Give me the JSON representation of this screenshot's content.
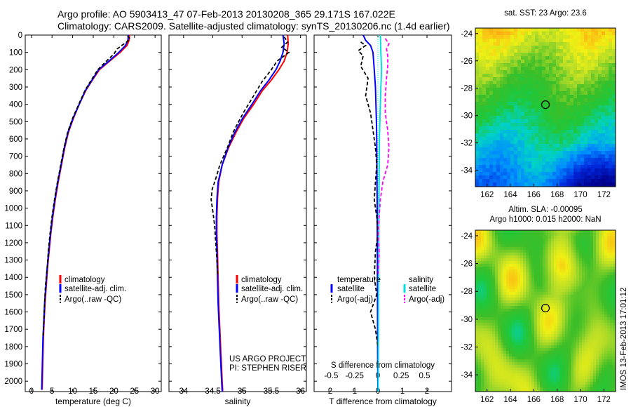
{
  "title_line1": "Argo profile: AO 5903413_47 07-Feb-2013 20130208_365 29.171S 167.022E",
  "title_line2": "Climatology: CARS2009. Satellite-adjusted climatology: synTS_20130206.nc (1.4d earlier)",
  "side_label": "IMOS 13-Feb-2013 17:01:12",
  "chart_data": [
    {
      "type": "line",
      "id": "temperature-profile",
      "xlabel": "temperature (deg C)",
      "xlim": [
        -1.5,
        31.5
      ],
      "xticks": [
        0,
        5,
        10,
        15,
        20,
        25,
        30
      ],
      "ylim": [
        0,
        2060
      ],
      "yticks": [
        0,
        100,
        200,
        300,
        400,
        500,
        600,
        700,
        800,
        900,
        1000,
        1100,
        1200,
        1300,
        1400,
        1500,
        1600,
        1700,
        1800,
        1900,
        2000
      ],
      "yreversed": true,
      "legend": [
        "climatology",
        "satellite-adj. clim.",
        "Argo(..raw -QC)"
      ],
      "series": [
        {
          "name": "climatology",
          "color": "#ff0000",
          "style": "solid",
          "points": [
            [
              23.8,
              0
            ],
            [
              23.7,
              30
            ],
            [
              23.2,
              60
            ],
            [
              21.5,
              100
            ],
            [
              19,
              150
            ],
            [
              16.5,
              200
            ],
            [
              14.8,
              260
            ],
            [
              13.2,
              320
            ],
            [
              11.6,
              400
            ],
            [
              10.2,
              480
            ],
            [
              9,
              560
            ],
            [
              8.1,
              650
            ],
            [
              7.3,
              750
            ],
            [
              6.5,
              850
            ],
            [
              5.8,
              950
            ],
            [
              5.2,
              1050
            ],
            [
              4.7,
              1150
            ],
            [
              4.3,
              1250
            ],
            [
              3.9,
              1350
            ],
            [
              3.6,
              1450
            ],
            [
              3.3,
              1550
            ],
            [
              3.1,
              1650
            ],
            [
              2.9,
              1750
            ],
            [
              2.8,
              1850
            ],
            [
              2.7,
              1950
            ],
            [
              2.6,
              2050
            ]
          ]
        },
        {
          "name": "satellite-adj. clim.",
          "color": "#0000ff",
          "style": "solid",
          "points": [
            [
              23.5,
              0
            ],
            [
              23.4,
              30
            ],
            [
              22.8,
              60
            ],
            [
              21.2,
              100
            ],
            [
              18.8,
              150
            ],
            [
              16.3,
              200
            ],
            [
              14.7,
              260
            ],
            [
              13.1,
              320
            ],
            [
              11.6,
              400
            ],
            [
              10.1,
              480
            ],
            [
              8.9,
              560
            ],
            [
              8,
              650
            ],
            [
              7.2,
              750
            ],
            [
              6.4,
              850
            ],
            [
              5.7,
              950
            ],
            [
              5.1,
              1050
            ],
            [
              4.6,
              1150
            ],
            [
              4.2,
              1250
            ],
            [
              3.8,
              1350
            ],
            [
              3.5,
              1450
            ],
            [
              3.2,
              1550
            ],
            [
              3,
              1650
            ],
            [
              2.8,
              1750
            ],
            [
              2.7,
              1850
            ],
            [
              2.6,
              1950
            ],
            [
              2.5,
              2050
            ]
          ]
        },
        {
          "name": "Argo(..raw -QC)",
          "color": "#000000",
          "style": "dashed",
          "points": [
            [
              23.3,
              5
            ],
            [
              23.9,
              20
            ],
            [
              23.1,
              40
            ],
            [
              22.2,
              55
            ],
            [
              20.8,
              80
            ],
            [
              20,
              110
            ],
            [
              18.2,
              150
            ],
            [
              16.1,
              200
            ],
            [
              14.5,
              260
            ],
            [
              13,
              320
            ],
            [
              11.5,
              400
            ],
            [
              10,
              480
            ],
            [
              8.8,
              560
            ],
            [
              7.9,
              650
            ],
            [
              7.1,
              750
            ],
            [
              6.3,
              850
            ],
            [
              5.6,
              950
            ],
            [
              5,
              1050
            ],
            [
              4.5,
              1150
            ],
            [
              4.1,
              1250
            ],
            [
              3.8,
              1350
            ],
            [
              3.4,
              1450
            ],
            [
              3.2,
              1550
            ],
            [
              3,
              1650
            ],
            [
              2.8,
              1750
            ]
          ]
        }
      ]
    },
    {
      "type": "line",
      "id": "salinity-profile",
      "xlabel": "salinity",
      "xlim": [
        33.75,
        36.1
      ],
      "xticks": [
        34,
        34.5,
        35,
        35.5,
        36
      ],
      "ylim": [
        0,
        2060
      ],
      "yreversed": true,
      "legend": [
        "climatology",
        "satellite-adj. clim.",
        "Argo(..raw -QC)"
      ],
      "annotation": [
        "US ARGO PROJECT",
        "PI: STEPHEN RISER"
      ],
      "series": [
        {
          "name": "climatology",
          "color": "#ff0000",
          "style": "solid",
          "points": [
            [
              35.78,
              0
            ],
            [
              35.79,
              50
            ],
            [
              35.77,
              100
            ],
            [
              35.72,
              150
            ],
            [
              35.63,
              200
            ],
            [
              35.5,
              260
            ],
            [
              35.35,
              320
            ],
            [
              35.2,
              400
            ],
            [
              35.03,
              480
            ],
            [
              34.9,
              560
            ],
            [
              34.77,
              650
            ],
            [
              34.66,
              750
            ],
            [
              34.6,
              850
            ],
            [
              34.58,
              950
            ],
            [
              34.57,
              1050
            ],
            [
              34.57,
              1150
            ],
            [
              34.58,
              1250
            ],
            [
              34.59,
              1400
            ],
            [
              34.6,
              1550
            ],
            [
              34.62,
              1700
            ],
            [
              34.64,
              1850
            ],
            [
              34.66,
              2000
            ],
            [
              34.67,
              2060
            ]
          ]
        },
        {
          "name": "satellite-adj. clim.",
          "color": "#0000ff",
          "style": "solid",
          "points": [
            [
              35.7,
              0
            ],
            [
              35.72,
              50
            ],
            [
              35.7,
              100
            ],
            [
              35.65,
              150
            ],
            [
              35.58,
              200
            ],
            [
              35.46,
              260
            ],
            [
              35.32,
              320
            ],
            [
              35.17,
              400
            ],
            [
              35.01,
              480
            ],
            [
              34.88,
              560
            ],
            [
              34.76,
              650
            ],
            [
              34.66,
              750
            ],
            [
              34.59,
              850
            ],
            [
              34.57,
              950
            ],
            [
              34.56,
              1050
            ],
            [
              34.56,
              1150
            ],
            [
              34.57,
              1250
            ],
            [
              34.58,
              1400
            ],
            [
              34.59,
              1550
            ],
            [
              34.61,
              1700
            ],
            [
              34.63,
              1850
            ],
            [
              34.65,
              2000
            ],
            [
              34.66,
              2060
            ]
          ]
        },
        {
          "name": "Argo(..raw -QC)",
          "color": "#000000",
          "style": "dashed",
          "points": [
            [
              35.72,
              10
            ],
            [
              35.78,
              40
            ],
            [
              35.68,
              70
            ],
            [
              35.8,
              100
            ],
            [
              35.6,
              150
            ],
            [
              35.5,
              200
            ],
            [
              35.34,
              270
            ],
            [
              35.2,
              350
            ],
            [
              35.02,
              450
            ],
            [
              34.85,
              560
            ],
            [
              34.75,
              650
            ],
            [
              34.62,
              750
            ],
            [
              34.55,
              830
            ],
            [
              34.49,
              890
            ],
            [
              34.47,
              950
            ],
            [
              34.5,
              1020
            ],
            [
              34.53,
              1100
            ],
            [
              34.55,
              1200
            ],
            [
              34.57,
              1300
            ],
            [
              34.58,
              1380
            ]
          ]
        }
      ]
    },
    {
      "type": "line",
      "id": "difference-profile",
      "xlabel": "T difference from climatology",
      "xlabel_top": "S difference from climatology",
      "xlim": [
        -2.6,
        3.0
      ],
      "xticks": [
        -2,
        -1,
        0,
        1,
        2
      ],
      "xticks_s": [
        "-0.5",
        "-0.25",
        "0",
        "0.25",
        "0.5"
      ],
      "xticks_s_pos": [
        -1.9,
        -0.95,
        0,
        0.95,
        1.9
      ],
      "ylim": [
        0,
        2060
      ],
      "yreversed": true,
      "legend_temperature": {
        "title": "temperature",
        "items": [
          "satellite",
          "Argo(-adj)"
        ]
      },
      "legend_salinity": {
        "title": "salinity",
        "items": [
          "satellite",
          "Argo(-adj)"
        ]
      },
      "series": [
        {
          "name": "temperature satellite",
          "color": "#0000ff",
          "style": "solid",
          "points": [
            [
              -0.6,
              0
            ],
            [
              -0.5,
              30
            ],
            [
              -0.3,
              60
            ],
            [
              -0.2,
              100
            ],
            [
              -0.15,
              200
            ],
            [
              -0.1,
              300
            ],
            [
              -0.08,
              400
            ],
            [
              -0.06,
              500
            ],
            [
              -0.05,
              600
            ],
            [
              -0.04,
              800
            ],
            [
              -0.03,
              1000
            ],
            [
              -0.02,
              1400
            ],
            [
              -0.01,
              1800
            ],
            [
              0,
              2060
            ]
          ]
        },
        {
          "name": "temperature Argo(-adj)",
          "color": "#000000",
          "style": "dashed",
          "points": [
            [
              -0.7,
              40
            ],
            [
              -0.5,
              60
            ],
            [
              -0.8,
              90
            ],
            [
              -0.6,
              120
            ],
            [
              -0.7,
              180
            ],
            [
              -0.4,
              250
            ],
            [
              -0.5,
              350
            ],
            [
              -0.3,
              450
            ],
            [
              -0.2,
              550
            ],
            [
              -0.1,
              650
            ],
            [
              -0.05,
              750
            ],
            [
              -0.1,
              850
            ],
            [
              -0.15,
              950
            ],
            [
              -0.05,
              1050
            ],
            [
              0,
              1150
            ],
            [
              -0.1,
              1250
            ],
            [
              -0.15,
              1400
            ],
            [
              -0.05,
              1500
            ],
            [
              -0.3,
              1600
            ],
            [
              -0.1,
              1700
            ],
            [
              0,
              1800
            ]
          ]
        },
        {
          "name": "salinity satellite",
          "color": "#00e0e0",
          "style": "solid",
          "points": [
            [
              0.1,
              0
            ],
            [
              0.12,
              100
            ],
            [
              0.15,
              200
            ],
            [
              0.12,
              300
            ],
            [
              0.1,
              400
            ],
            [
              0.08,
              500
            ],
            [
              0.06,
              600
            ],
            [
              0.05,
              800
            ],
            [
              0.04,
              1000
            ],
            [
              0.03,
              1400
            ],
            [
              0.02,
              1800
            ],
            [
              0.01,
              2060
            ]
          ]
        },
        {
          "name": "salinity Argo(-adj)",
          "color": "#ff00ff",
          "style": "dashed",
          "points": [
            [
              0.3,
              20
            ],
            [
              0.45,
              50
            ],
            [
              0.35,
              80
            ],
            [
              0.4,
              120
            ],
            [
              0.4,
              180
            ],
            [
              0.35,
              250
            ],
            [
              0.3,
              350
            ],
            [
              0.3,
              450
            ],
            [
              0.4,
              550
            ],
            [
              0.45,
              650
            ],
            [
              0.4,
              750
            ],
            [
              0.2,
              850
            ],
            [
              0.1,
              950
            ],
            [
              0.05,
              1050
            ],
            [
              0.02,
              1150
            ],
            [
              0.05,
              1250
            ],
            [
              0.02,
              1380
            ]
          ]
        }
      ]
    },
    {
      "type": "heatmap",
      "id": "sst-map",
      "title": "sat. SST: 23 Argo: 23.6",
      "xticks": [
        162,
        164,
        166,
        168,
        170,
        172
      ],
      "yticks": [
        -24,
        -26,
        -28,
        -30,
        -32,
        -34
      ],
      "xlim": [
        161,
        173
      ],
      "ylim": [
        -35.2,
        -23.6
      ],
      "marker": [
        167,
        -29.2
      ]
    },
    {
      "type": "heatmap",
      "id": "sla-map",
      "title_line1": "Altim. SLA: -0.00095",
      "title_line2": "Argo h1000: 0.015 h2000: NaN",
      "xticks": [
        162,
        164,
        166,
        168,
        170,
        172
      ],
      "yticks": [
        -24,
        -26,
        -28,
        -30,
        -32,
        -34
      ],
      "xlim": [
        161,
        173
      ],
      "ylim": [
        -35.2,
        -23.6
      ],
      "marker": [
        167,
        -29.2
      ]
    }
  ]
}
